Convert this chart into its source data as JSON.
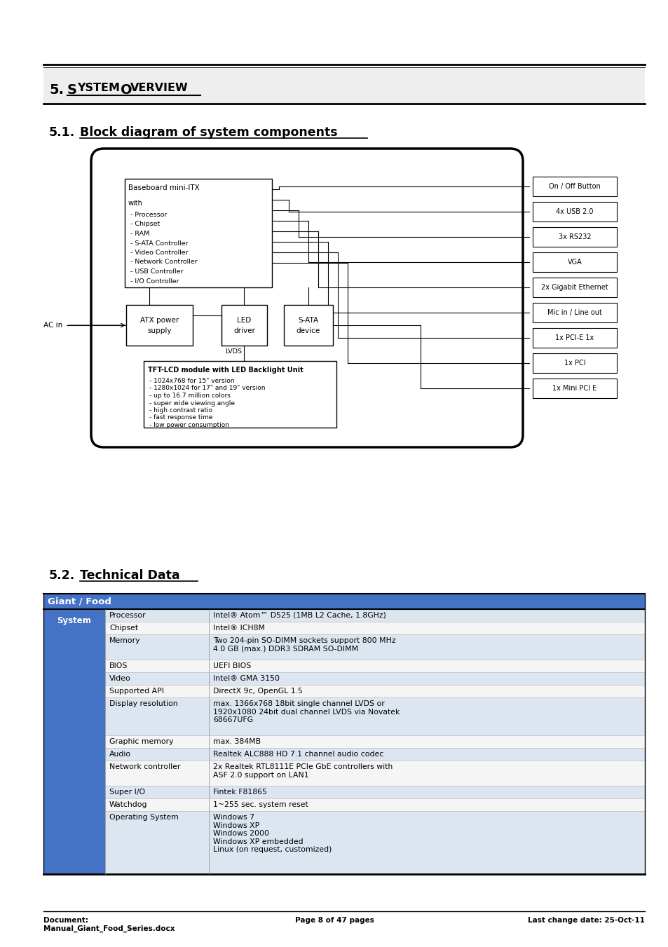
{
  "page_bg": "#ffffff",
  "footer_text_left": "Document:\nManual_Giant_Food_Series.docx",
  "footer_text_center": "Page 8 of 47 pages",
  "footer_text_right": "Last change date: 25-Oct-11",
  "table_header_text": "Giant / Food",
  "table_header_bg": "#4472c4",
  "table_header_fg": "#ffffff",
  "table_alt_bg": "#dce6f1",
  "table_white_bg": "#f5f5f5",
  "system_col_bg": "#4472c4",
  "system_col_fg": "#ffffff",
  "table_rows": [
    [
      "System",
      "Processor",
      "Intel® Atom™ D525 (1MB L2 Cache, 1.8GHz)"
    ],
    [
      "",
      "Chipset",
      "Intel® ICH8M"
    ],
    [
      "",
      "Memory",
      "Two 204-pin SO-DIMM sockets support 800 MHz\n4.0 GB (max.) DDR3 SDRAM SO-DIMM"
    ],
    [
      "",
      "BIOS",
      "UEFI BIOS"
    ],
    [
      "",
      "Video",
      "Intel® GMA 3150"
    ],
    [
      "",
      "Supported API",
      "DirectX 9c, OpenGL 1.5"
    ],
    [
      "",
      "Display resolution",
      "max. 1366x768 18bit single channel LVDS or\n1920x1080 24bit dual channel LVDS via Novatek\n68667UFG"
    ],
    [
      "",
      "Graphic memory",
      "max. 384MB"
    ],
    [
      "",
      "Audio",
      "Realtek ALC888 HD 7.1 channel audio codec"
    ],
    [
      "",
      "Network controller",
      "2x Realtek RTL8111E PCIe GbE controllers with\nASF 2.0 support on LAN1"
    ],
    [
      "",
      "Super I/O",
      "Fintek F81865"
    ],
    [
      "",
      "Watchdog",
      "1~255 sec. system reset"
    ],
    [
      "",
      "Operating System",
      "Windows 7\nWindows XP\nWindows 2000\nWindows XP embedded\nLinux (on request, customized)"
    ]
  ],
  "right_labels": [
    "On / Off Button",
    "4x USB 2.0",
    "3x RS232",
    "VGA",
    "2x Gigabit Ethernet",
    "Mic in / Line out",
    "1x PCI-E 1x",
    "1x PCI",
    "1x Mini PCI E"
  ],
  "baseboard_items": [
    "- Processor",
    "- Chipset",
    "- RAM",
    "- S-ATA Controller",
    "- Video Controller",
    "- Network Controller",
    "- USB Controller",
    "- I/O Controller"
  ],
  "tft_items": [
    "- 1024x768 for 15\" version",
    "- 1280x1024 for 17\" and 19\" version",
    "- up to 16.7 million colors",
    "- super wide viewing angle",
    "- high contrast ratio",
    "- fast response time",
    "- low power consumption"
  ]
}
